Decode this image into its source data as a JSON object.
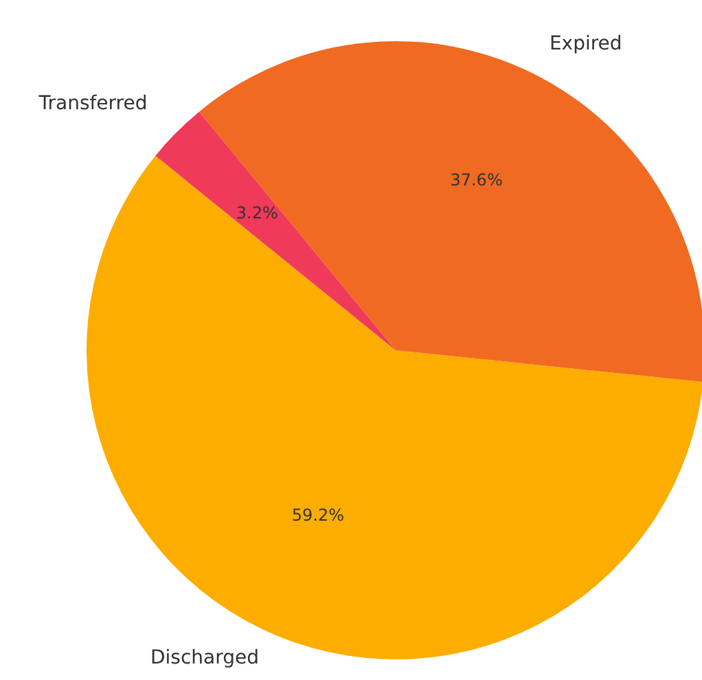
{
  "chart_data": {
    "type": "pie",
    "categories": [
      "Discharged",
      "Expired",
      "Transferred"
    ],
    "values": [
      59.2,
      37.6,
      3.2
    ],
    "colors": [
      "#fcad00",
      "#f06a22",
      "#f03a5a"
    ],
    "value_labels": [
      "59.2%",
      "37.6%",
      "3.2%"
    ]
  }
}
